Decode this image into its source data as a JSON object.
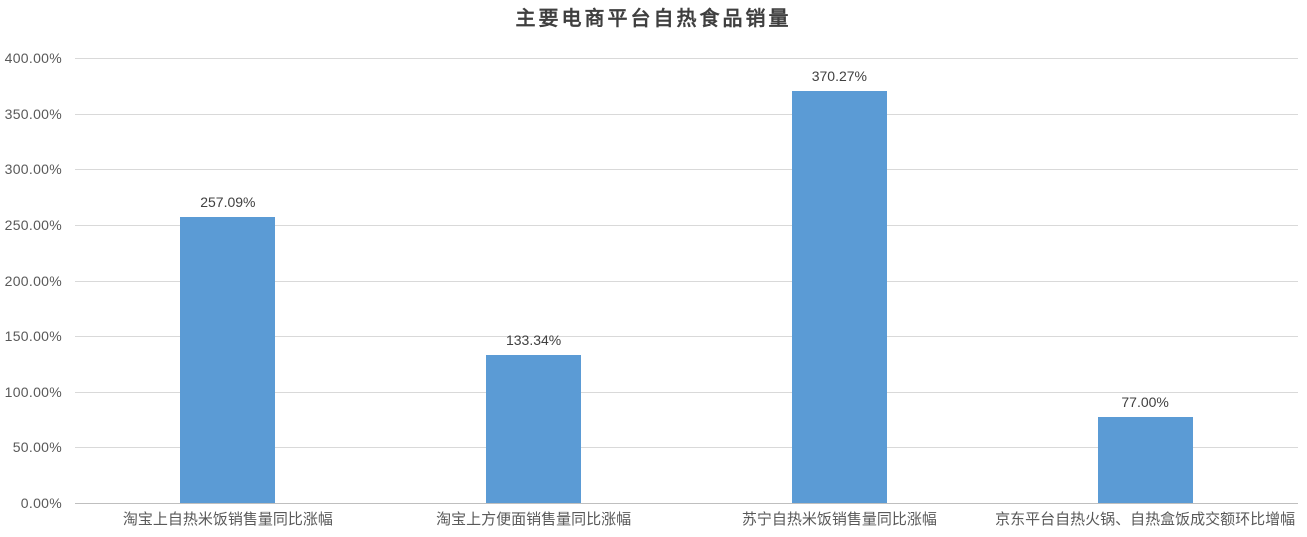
{
  "chart": {
    "title": "主要电商平台自热食品销量"
  },
  "chart_data": {
    "type": "bar",
    "title": "主要电商平台自热食品销量",
    "categories": [
      "淘宝上自热米饭销售量同比涨幅",
      "淘宝上方便面销售量同比涨幅",
      "苏宁自热米饭销售量同比涨幅",
      "京东平台自热火锅、自热盒饭成交额环比增幅"
    ],
    "values": [
      257.09,
      133.34,
      370.27,
      77.0
    ],
    "value_labels": [
      "257.09%",
      "133.34%",
      "370.27%",
      "77.00%"
    ],
    "xlabel": "",
    "ylabel": "",
    "ylim": [
      0,
      400
    ],
    "ytick_step": 50,
    "ytick_labels": [
      "0.00%",
      "50.00%",
      "100.00%",
      "150.00%",
      "200.00%",
      "250.00%",
      "300.00%",
      "350.00%",
      "400.00%"
    ],
    "grid": true,
    "legend_position": "none",
    "colors": {
      "bar": "#5b9bd5",
      "gridline": "#d9d9d9",
      "axis_line": "#bfbfbf",
      "title_text": "#3f3f3f",
      "axis_text": "#595959",
      "data_label_text": "#404040",
      "background": "#ffffff"
    }
  }
}
